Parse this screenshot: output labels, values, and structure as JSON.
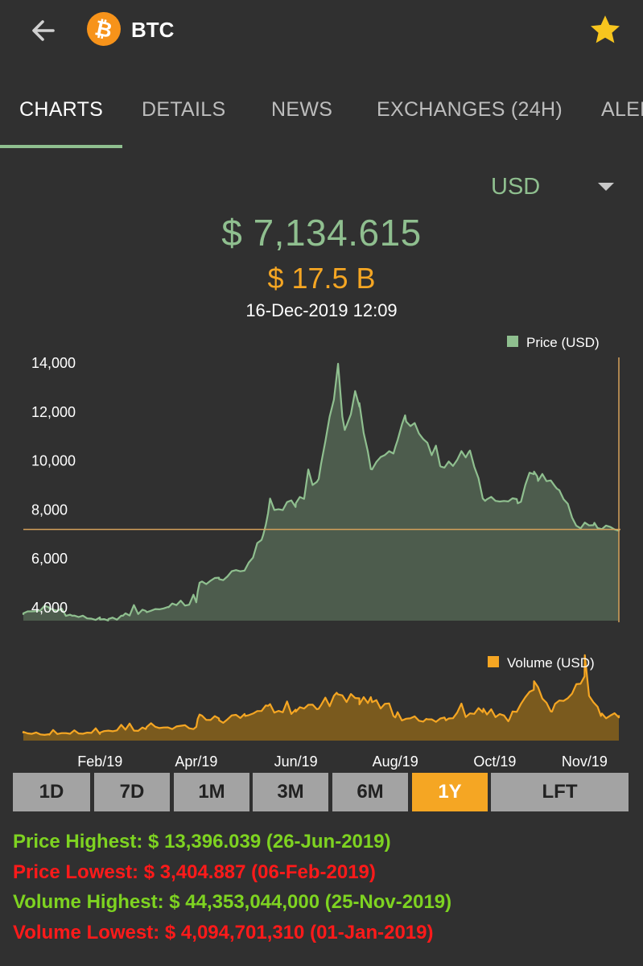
{
  "colors": {
    "background": "#303030",
    "accent_green": "#8fbf8f",
    "price_fill": "#4d5c4d",
    "orange": "#f5a623",
    "volume_fill": "#7a5a1e",
    "stat_high": "#7ed321",
    "stat_low": "#ff1a1a"
  },
  "header": {
    "back_icon": "arrow-left-icon",
    "coin_icon": "bitcoin-icon",
    "coin_icon_glyph": "₿",
    "symbol": "BTC",
    "favorite_icon": "star-icon"
  },
  "tabs": [
    {
      "label": "CHARTS",
      "active": true
    },
    {
      "label": "DETAILS",
      "active": false
    },
    {
      "label": "NEWS",
      "active": false
    },
    {
      "label": "EXCHANGES (24H)",
      "active": false
    },
    {
      "label": "ALER",
      "active": false
    }
  ],
  "currency_selector": {
    "value": "USD",
    "icon": "caret-down-icon"
  },
  "summary": {
    "price": "$ 7,134.615",
    "volume": "$ 17.5 B",
    "timestamp": "16-Dec-2019 12:09"
  },
  "chart_data": [
    {
      "type": "area",
      "legend": "Price (USD)",
      "legend_placement": "top-right",
      "ylim": [
        3400,
        14300
      ],
      "yticks": [
        "4,000",
        "6,000",
        "8,000",
        "10,000",
        "12,000",
        "14,000"
      ],
      "ytick_values": [
        4000,
        6000,
        8000,
        10000,
        12000,
        14000
      ],
      "current_value_line": 7134.615,
      "x": [
        "2018-12-16",
        "2019-01-01",
        "2019-01-15",
        "2019-02-01",
        "2019-02-06",
        "2019-02-15",
        "2019-03-01",
        "2019-03-15",
        "2019-04-01",
        "2019-04-03",
        "2019-04-15",
        "2019-05-01",
        "2019-05-12",
        "2019-05-15",
        "2019-06-01",
        "2019-06-15",
        "2019-06-26",
        "2019-07-01",
        "2019-07-10",
        "2019-07-17",
        "2019-08-01",
        "2019-08-07",
        "2019-08-29",
        "2019-09-15",
        "2019-09-25",
        "2019-10-15",
        "2019-10-25",
        "2019-10-27",
        "2019-11-08",
        "2019-11-22",
        "2019-12-01",
        "2019-12-16"
      ],
      "y": [
        3700,
        3900,
        3600,
        3450,
        3405,
        3600,
        3800,
        3950,
        4150,
        4950,
        5100,
        5500,
        6900,
        7800,
        8200,
        9200,
        13396,
        11200,
        12300,
        9600,
        10500,
        11800,
        9700,
        10300,
        8300,
        8200,
        9500,
        9300,
        8800,
        7200,
        7400,
        7135
      ]
    },
    {
      "type": "area",
      "legend": "Volume (USD)",
      "legend_placement": "top-right",
      "ylim": [
        0,
        50000000000
      ],
      "x": [
        "2018-12-16",
        "2019-01-01",
        "2019-02-01",
        "2019-03-01",
        "2019-04-01",
        "2019-04-03",
        "2019-04-15",
        "2019-05-01",
        "2019-05-15",
        "2019-06-01",
        "2019-06-15",
        "2019-06-26",
        "2019-07-10",
        "2019-07-17",
        "2019-08-01",
        "2019-08-20",
        "2019-09-01",
        "2019-09-24",
        "2019-10-10",
        "2019-10-25",
        "2019-11-05",
        "2019-11-25",
        "2019-12-05",
        "2019-12-16"
      ],
      "y": [
        6000000000,
        4094701310,
        5500000000,
        8000000000,
        9500000000,
        18000000000,
        14000000000,
        17000000000,
        24000000000,
        20000000000,
        22000000000,
        33000000000,
        25000000000,
        30000000000,
        16000000000,
        15000000000,
        14000000000,
        22000000000,
        15000000000,
        41000000000,
        20000000000,
        44353044000,
        17000000000,
        17500000000
      ]
    }
  ],
  "x_axis_labels": [
    "Feb/19",
    "Apr/19",
    "Jun/19",
    "Aug/19",
    "Oct/19",
    "Nov/19"
  ],
  "range_buttons": [
    {
      "label": "1D",
      "active": false
    },
    {
      "label": "7D",
      "active": false
    },
    {
      "label": "1M",
      "active": false
    },
    {
      "label": "3M",
      "active": false
    },
    {
      "label": "6M",
      "active": false
    },
    {
      "label": "1Y",
      "active": true
    },
    {
      "label": "LFT",
      "active": false
    }
  ],
  "stats": {
    "price_highest": "Price Highest: $ 13,396.039 (26-Jun-2019)",
    "price_lowest": "Price Lowest: $ 3,404.887 (06-Feb-2019)",
    "volume_highest": "Volume Highest: $ 44,353,044,000 (25-Nov-2019)",
    "volume_lowest": "Volume Lowest: $ 4,094,701,310 (01-Jan-2019)"
  }
}
